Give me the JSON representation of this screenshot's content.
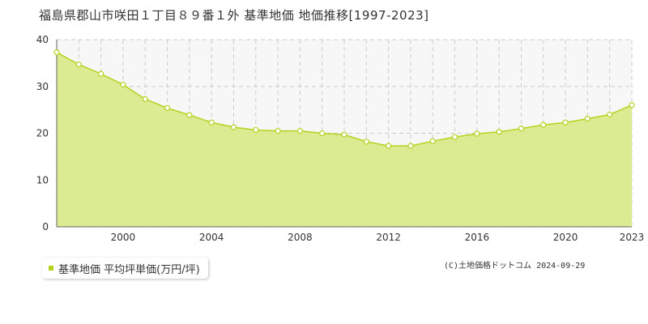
{
  "title": "福島県郡山市咲田１丁目８９番１外 基準地価 地価推移[1997-2023]",
  "legend_label": "基準地価 平均坪単価(万円/坪)",
  "copyright": "(C)土地価格ドットコム 2024-09-29",
  "colors": {
    "fill": "#d9ea8c",
    "line": "#b5d21e",
    "marker_fill": "#ffffff",
    "grid": "#cccccc",
    "plot_bg_upper": "#f7f7f7"
  },
  "chart_data": {
    "type": "area",
    "title": "福島県郡山市咲田１丁目８９番１外 基準地価 地価推移[1997-2023]",
    "xlabel": "",
    "ylabel": "",
    "x": [
      1997,
      1998,
      1999,
      2000,
      2001,
      2002,
      2003,
      2004,
      2005,
      2006,
      2007,
      2008,
      2009,
      2010,
      2011,
      2012,
      2013,
      2014,
      2015,
      2016,
      2017,
      2018,
      2019,
      2020,
      2021,
      2022,
      2023
    ],
    "series": [
      {
        "name": "基準地価 平均坪単価(万円/坪)",
        "values": [
          37.3,
          34.7,
          32.7,
          30.4,
          27.3,
          25.4,
          23.9,
          22.3,
          21.3,
          20.7,
          20.5,
          20.5,
          20.0,
          19.7,
          18.2,
          17.3,
          17.3,
          18.3,
          19.2,
          19.9,
          20.3,
          21.0,
          21.8,
          22.3,
          23.1,
          24.0,
          26.0
        ]
      }
    ],
    "xlim": [
      1997,
      2023
    ],
    "ylim": [
      0,
      40
    ],
    "yticks": [
      0,
      10,
      20,
      30,
      40
    ],
    "xticks": [
      2000,
      2004,
      2008,
      2012,
      2016,
      2020,
      2023
    ],
    "grid": true,
    "legend": "bottom-left"
  }
}
